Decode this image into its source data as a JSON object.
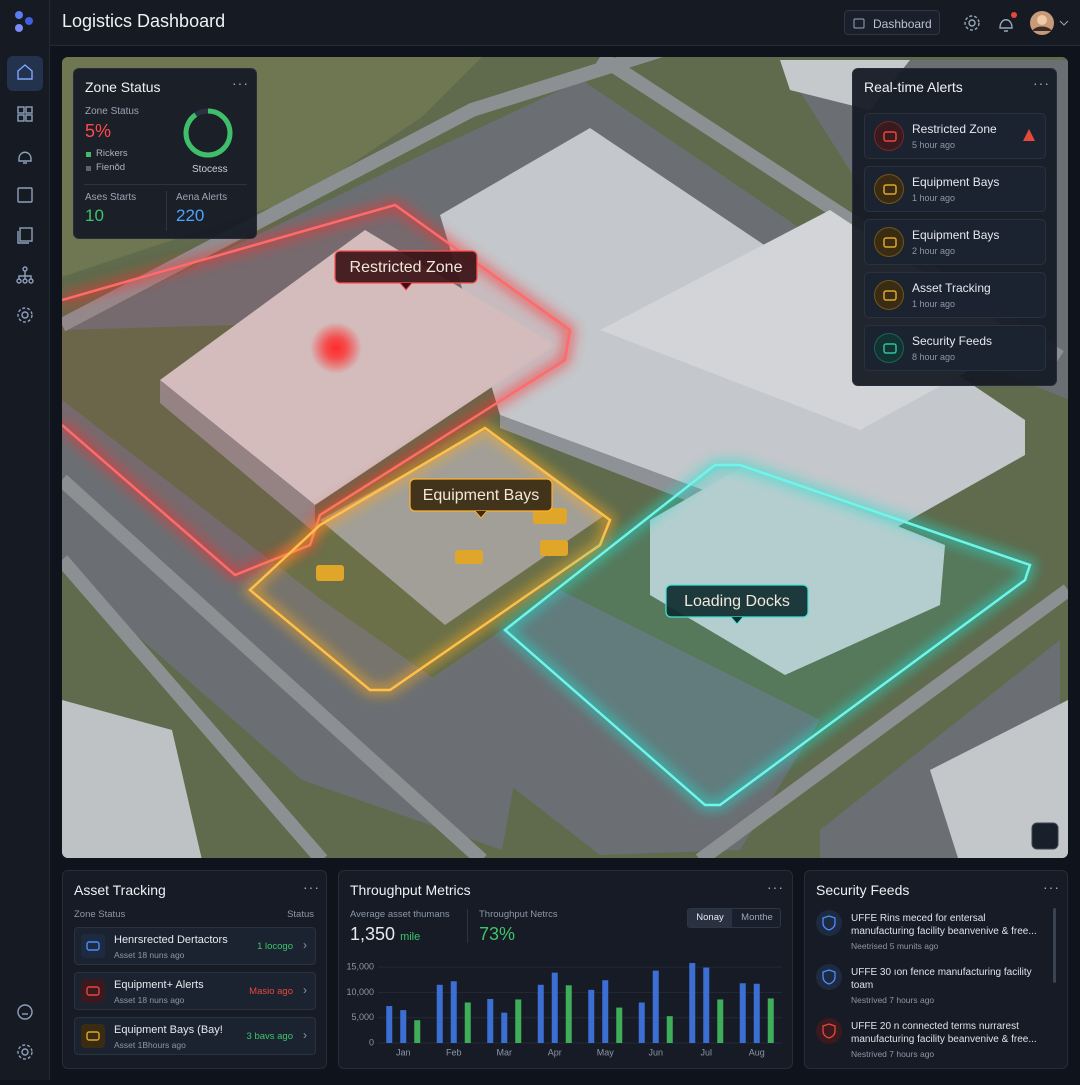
{
  "header": {
    "title": "Logistics Dashboard",
    "button": "Dashboard"
  },
  "zone_status": {
    "title": "Zone Status",
    "label": "Zone Status",
    "value": "5%",
    "legend": [
      "Rickers",
      "Fienŏd"
    ],
    "donut_label": "Stocess",
    "stats": [
      {
        "label": "Ases Starts",
        "value": "10"
      },
      {
        "label": "Aena Alerts",
        "value": "220"
      }
    ]
  },
  "map": {
    "zones": [
      "Restricted Zone",
      "Equipment Bays",
      "Loading Docks"
    ]
  },
  "alerts": {
    "title": "Real-time Alerts",
    "items": [
      {
        "title": "Restricted Zone",
        "time": "5 hour ago"
      },
      {
        "title": "Equipment Bays",
        "time": "1 hour ago"
      },
      {
        "title": "Equipment Bays",
        "time": "2 hour ago"
      },
      {
        "title": "Asset Tracking",
        "time": "1 hour ago"
      },
      {
        "title": "Security Feeds",
        "time": "8 hour ago"
      }
    ]
  },
  "asset_tracking": {
    "title": "Asset Tracking",
    "columns": [
      "Zone Status",
      "Status"
    ],
    "rows": [
      {
        "title": "Henrsrected Dertactors",
        "sub": "Asset 18 nuns ago",
        "status": "1 locogo"
      },
      {
        "title": "Equipment+ Alerts",
        "sub": "Asset 18 nuns ago",
        "status": "Masio ago"
      },
      {
        "title": "Equipment Bays (Bay!",
        "sub": "Asset 1Bhours ago",
        "status": "3 bavs ago"
      }
    ]
  },
  "throughput": {
    "title": "Throughput Metrics",
    "metrics": [
      {
        "label": "Average asset thumans",
        "value": "1,350",
        "unit": "mile"
      },
      {
        "label": "Throughput Netrcs",
        "value": "73%"
      }
    ],
    "tabs": [
      "Nonay",
      "Monthe"
    ],
    "chart": {
      "type": "bar",
      "categories": [
        "Jan",
        "Feb",
        "Mar",
        "Apr",
        "May",
        "Jun",
        "Jul",
        "Aug"
      ],
      "series": [
        {
          "color": "#3b6fd4",
          "values": [
            7300,
            11500,
            8700,
            11500,
            10500,
            8000,
            15800,
            11800
          ]
        },
        {
          "color": "#3b6fd4",
          "values": [
            6500,
            12200,
            6000,
            13900,
            12400,
            14300,
            14900,
            11700
          ]
        },
        {
          "color": "#3fae5a",
          "values": [
            4500,
            8000,
            8600,
            11400,
            7000,
            5300,
            8600,
            8800
          ]
        }
      ],
      "ylim": [
        0,
        16000
      ],
      "yticks": [
        0,
        {
          "value": 5000,
          "label": "5,000"
        },
        {
          "value": 10000,
          "label": "10,000"
        },
        {
          "value": 15000,
          "label": "15,000"
        }
      ]
    }
  },
  "security_feeds": {
    "title": "Security Feeds",
    "items": [
      {
        "text": "UFFE Rins meced for entersal manufacturing facility beanvenive & free...",
        "time": "Neetrised 5 munits ago"
      },
      {
        "text": "UFFE 30 ıon fence manufacturing facility toam",
        "time": "Nestrived 7 hours ago"
      },
      {
        "text": "UFFE 20 n connected terms nurrarest manufacturing facility beanvenive & free...",
        "time": "Nestrived 7 hours ago"
      }
    ]
  }
}
